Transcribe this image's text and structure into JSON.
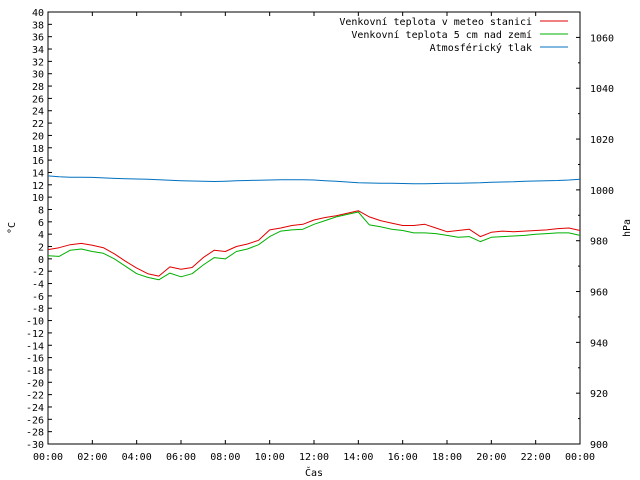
{
  "chart_data": {
    "type": "line",
    "title": "",
    "xlabel": "Čas",
    "ylabel_left": "°C",
    "ylabel_right": "hPa",
    "y_left_lim": [
      -30,
      40
    ],
    "y_right_lim": [
      900,
      1070
    ],
    "x_ticks": [
      "00:00",
      "02:00",
      "04:00",
      "06:00",
      "08:00",
      "10:00",
      "12:00",
      "14:00",
      "16:00",
      "18:00",
      "20:00",
      "22:00",
      "00:00"
    ],
    "y_left_ticks": [
      40,
      38,
      36,
      34,
      32,
      30,
      28,
      26,
      24,
      22,
      20,
      18,
      16,
      14,
      12,
      10,
      8,
      6,
      4,
      2,
      0,
      -2,
      -4,
      -6,
      -8,
      -10,
      -12,
      -14,
      -16,
      -18,
      -20,
      -22,
      -24,
      -26,
      -28,
      -30
    ],
    "y_right_ticks": [
      1060,
      1040,
      1020,
      1000,
      980,
      960,
      940,
      920,
      900
    ],
    "x_hours": [
      0,
      0.5,
      1,
      1.5,
      2,
      2.5,
      3,
      3.5,
      4,
      4.5,
      5,
      5.5,
      6,
      6.5,
      7,
      7.5,
      8,
      8.5,
      9,
      9.5,
      10,
      10.5,
      11,
      11.5,
      12,
      12.5,
      13,
      13.5,
      14,
      14.5,
      15,
      15.5,
      16,
      16.5,
      17,
      17.5,
      18,
      18.5,
      19,
      19.5,
      20,
      20.5,
      21,
      21.5,
      22,
      22.5,
      23,
      23.5,
      24
    ],
    "series": [
      {
        "name": "Venkovní teplota v meteo stanici",
        "color": "#e00000",
        "axis": "left",
        "values": [
          1.5,
          1.8,
          2.3,
          2.5,
          2.2,
          1.8,
          0.8,
          -0.4,
          -1.5,
          -2.4,
          -2.8,
          -1.3,
          -1.7,
          -1.4,
          0.2,
          1.4,
          1.2,
          2.0,
          2.4,
          3.0,
          4.7,
          5.0,
          5.4,
          5.6,
          6.3,
          6.7,
          7.0,
          7.4,
          7.8,
          6.8,
          6.2,
          5.8,
          5.4,
          5.4,
          5.6,
          5.0,
          4.4,
          4.6,
          4.8,
          3.6,
          4.3,
          4.5,
          4.4,
          4.5,
          4.6,
          4.7,
          4.9,
          5.0,
          4.6
        ]
      },
      {
        "name": "Venkovní teplota 5 cm nad zemí",
        "color": "#00b000",
        "axis": "left",
        "values": [
          0.5,
          0.4,
          1.4,
          1.6,
          1.2,
          0.9,
          0.0,
          -1.2,
          -2.4,
          -3.0,
          -3.4,
          -2.3,
          -2.9,
          -2.4,
          -1.0,
          0.2,
          0.0,
          1.2,
          1.6,
          2.3,
          3.6,
          4.5,
          4.7,
          4.8,
          5.6,
          6.2,
          6.8,
          7.2,
          7.6,
          5.5,
          5.2,
          4.8,
          4.6,
          4.2,
          4.2,
          4.1,
          3.8,
          3.5,
          3.6,
          2.8,
          3.5,
          3.6,
          3.7,
          3.8,
          4.0,
          4.1,
          4.2,
          4.2,
          3.8
        ]
      },
      {
        "name": "Atmosférický tlak",
        "color": "#0070c0",
        "axis": "right",
        "values": [
          1005.5,
          1005.2,
          1005.0,
          1005.0,
          1004.9,
          1004.7,
          1004.5,
          1004.4,
          1004.3,
          1004.2,
          1004.0,
          1003.8,
          1003.6,
          1003.5,
          1003.4,
          1003.3,
          1003.4,
          1003.6,
          1003.7,
          1003.8,
          1003.9,
          1004.0,
          1004.0,
          1004.0,
          1003.9,
          1003.6,
          1003.4,
          1003.1,
          1002.8,
          1002.7,
          1002.6,
          1002.6,
          1002.5,
          1002.4,
          1002.4,
          1002.5,
          1002.6,
          1002.6,
          1002.7,
          1002.8,
          1003.0,
          1003.1,
          1003.2,
          1003.4,
          1003.5,
          1003.6,
          1003.7,
          1003.9,
          1004.2
        ]
      }
    ],
    "legend_position": "top-right",
    "grid": false
  }
}
